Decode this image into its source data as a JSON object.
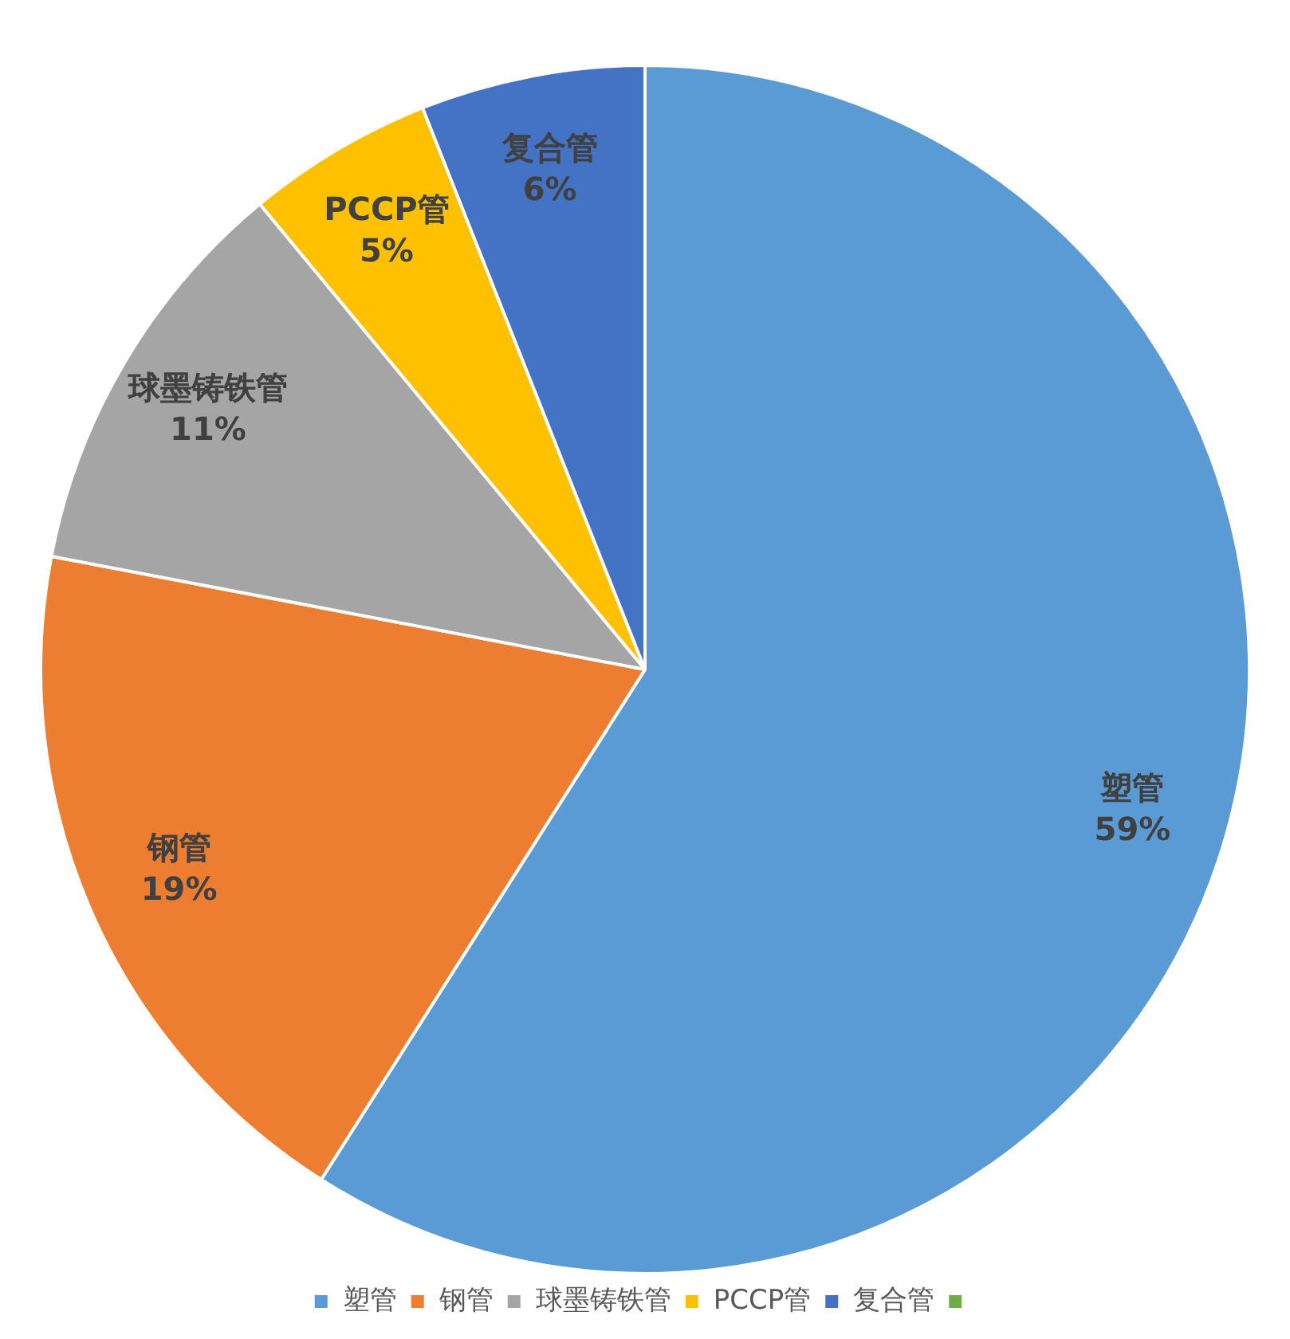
{
  "chart_data": {
    "type": "pie",
    "categories": [
      "塑管",
      "钢管",
      "球墨铸铁管",
      "PCCP管",
      "复合管",
      null
    ],
    "values": [
      59,
      19,
      11,
      5,
      6,
      0
    ],
    "colors": [
      "#5b9bd5",
      "#ed7d31",
      "#a5a5a5",
      "#ffc000",
      "#4472c4",
      "#70ad47"
    ],
    "value_labels": [
      "59%",
      "19%",
      "11%",
      "5%",
      "6%",
      null
    ],
    "legend": "bottom"
  }
}
